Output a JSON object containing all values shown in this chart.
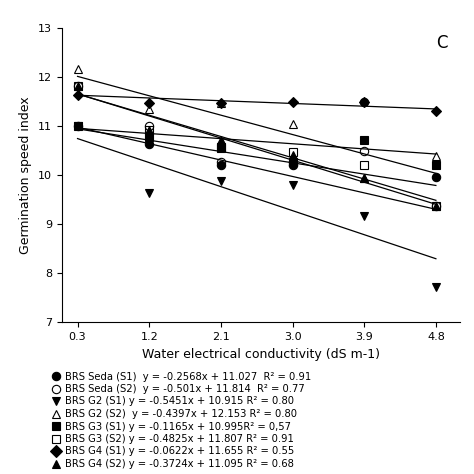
{
  "x_values": [
    0.3,
    1.2,
    2.1,
    3.0,
    3.9,
    4.8
  ],
  "series": [
    {
      "label": "BRS Seda (S1) y = -0.2568x + 11.027 R² = 0.91",
      "slope": -0.2568,
      "intercept": 11.027,
      "marker": "o",
      "fillstyle": "full",
      "color": "black",
      "markersize": 6,
      "data": [
        11.0,
        10.65,
        10.22,
        10.22,
        11.5,
        9.97
      ]
    },
    {
      "label": "BRS Seda (S2) y = -0.501x + 11.814 R² = 0.77",
      "slope": -0.501,
      "intercept": 11.814,
      "marker": "o",
      "fillstyle": "none",
      "color": "black",
      "markersize": 6,
      "data": [
        11.82,
        11.0,
        10.28,
        10.28,
        10.5,
        9.38
      ]
    },
    {
      "label": "BRS G2 (S1) y = -0.5451x + 10.915 R² = 0.80",
      "slope": -0.5451,
      "intercept": 10.915,
      "marker": "v",
      "fillstyle": "full",
      "color": "black",
      "markersize": 6,
      "data": [
        11.0,
        9.65,
        9.88,
        9.8,
        9.18,
        7.72
      ]
    },
    {
      "label": "BRS G2 (S2) y = -0.4397x + 12.153 R² = 0.80",
      "slope": -0.4397,
      "intercept": 12.153,
      "marker": "^",
      "fillstyle": "none",
      "color": "black",
      "markersize": 6,
      "data": [
        12.18,
        11.35,
        11.48,
        11.05,
        9.95,
        10.4
      ]
    },
    {
      "label": "BRS G3 (S1) y = -0.1165x + 10.995R² = 0,57",
      "slope": -0.1165,
      "intercept": 10.995,
      "marker": "s",
      "fillstyle": "full",
      "color": "black",
      "markersize": 6,
      "data": [
        11.0,
        10.78,
        10.55,
        10.28,
        10.72,
        10.22
      ]
    },
    {
      "label": "BRS G3 (S2) y = -0.4825x + 11.807 R² = 0.91",
      "slope": -0.4825,
      "intercept": 11.807,
      "marker": "s",
      "fillstyle": "none",
      "color": "black",
      "markersize": 6,
      "data": [
        11.82,
        10.92,
        10.58,
        10.48,
        10.22,
        9.38
      ]
    },
    {
      "label": "BRS G4 (S1) y = -0.0622x + 11.655 R² = 0.55",
      "slope": -0.0622,
      "intercept": 11.655,
      "marker": "D",
      "fillstyle": "full",
      "color": "black",
      "markersize": 5,
      "data": [
        11.65,
        11.48,
        11.48,
        11.5,
        11.5,
        11.32
      ]
    },
    {
      "label": "BRS G4 (S2) y = -0.3724x + 11.095 R² = 0.68",
      "slope": -0.3724,
      "intercept": 11.095,
      "marker": "^",
      "fillstyle": "full",
      "color": "black",
      "markersize": 6,
      "data": [
        11.82,
        10.92,
        10.72,
        10.42,
        9.95,
        9.38
      ]
    }
  ],
  "xlabel": "Water electrical conductivity (dS m-1)",
  "ylabel": "Germination speed index",
  "panel_label": "C",
  "xlim": [
    0.1,
    5.1
  ],
  "ylim": [
    7.0,
    13.0
  ],
  "xticks": [
    0.3,
    1.2,
    2.1,
    3.0,
    3.9,
    4.8
  ],
  "yticks": [
    7,
    8,
    9,
    10,
    11,
    12,
    13
  ],
  "background_color": "#ffffff",
  "fontsize": 9,
  "legend_entries": [
    {
      "marker": "o",
      "fillstyle": "full",
      "label": "BRS Seda (S1)  y = -0.2568x + 11.027  R² = 0.91"
    },
    {
      "marker": "o",
      "fillstyle": "none",
      "label": "BRS Seda (S2)  y = -0.501x + 11.814  R² = 0.77"
    },
    {
      "marker": "v",
      "fillstyle": "full",
      "label": "BRS G2 (S1) y = -0.5451x + 10.915 R² = 0.80"
    },
    {
      "marker": "^",
      "fillstyle": "none",
      "label": "BRS G2 (S2)  y = -0.4397x + 12.153 R² = 0.80"
    },
    {
      "marker": "s",
      "fillstyle": "full",
      "label": "BRS G3 (S1) y = -0.1165x + 10.995R² = 0,57"
    },
    {
      "marker": "s",
      "fillstyle": "none",
      "label": "BRS G3 (S2) y = -0.4825x + 11.807 R² = 0.91"
    },
    {
      "marker": "D",
      "fillstyle": "full",
      "label": "BRS G4 (S1) y = -0.0622x + 11.655 R² = 0.55"
    },
    {
      "marker": "^",
      "fillstyle": "full",
      "label": "BRS G4 (S2) y = -0.3724x + 11.095 R² = 0.68"
    }
  ]
}
